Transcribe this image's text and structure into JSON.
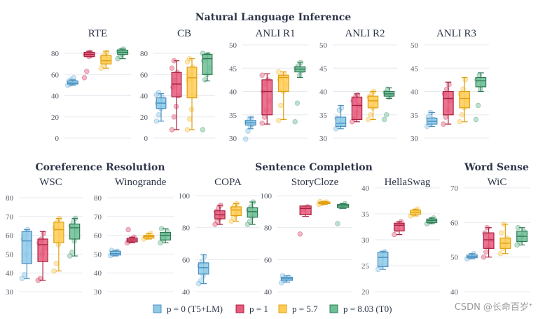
{
  "figure": {
    "group_titles": [
      "Natural Language Inference",
      "Coreference Resolution",
      "Sentence Completion",
      "Word Sense"
    ],
    "watermark": "CSDN @长命百岁ᐩ"
  },
  "legend": [
    {
      "label": "p = 0 (T5+LM)",
      "color": "#8ecae6",
      "edge": "#4a90c2"
    },
    {
      "label": "p = 1",
      "color": "#e75a7c",
      "edge": "#a8203f"
    },
    {
      "label": "p = 5.7",
      "color": "#ffcc55",
      "edge": "#e0a010"
    },
    {
      "label": "p = 8.03 (T0)",
      "color": "#6fbf96",
      "edge": "#2f7a55"
    }
  ],
  "chart_data": [
    {
      "type": "box",
      "title": "RTE",
      "group": "Natural Language Inference",
      "ylim": [
        0,
        88
      ],
      "yticks": [
        0,
        20,
        40,
        60,
        80
      ],
      "series": [
        {
          "name": "p = 0 (T5+LM)",
          "q1": 51,
          "median": 52,
          "q3": 54,
          "whislo": 50,
          "whishi": 55,
          "points": [
            50,
            51,
            52,
            53,
            54,
            55,
            57
          ]
        },
        {
          "name": "p = 1",
          "q1": 77,
          "median": 79,
          "q3": 81,
          "whislo": 77,
          "whishi": 82,
          "points": [
            57,
            63,
            77,
            78,
            79,
            80,
            81
          ]
        },
        {
          "name": "p = 5.7",
          "q1": 70,
          "median": 73,
          "q3": 78,
          "whislo": 66,
          "whishi": 82,
          "points": [
            66,
            69,
            72,
            74,
            76,
            79,
            81
          ]
        },
        {
          "name": "p = 8.03 (T0)",
          "q1": 79,
          "median": 81,
          "q3": 83,
          "whislo": 75,
          "whishi": 84,
          "points": [
            75,
            77,
            79,
            81,
            82,
            83,
            84
          ]
        }
      ]
    },
    {
      "type": "box",
      "title": "CB",
      "group": "Natural Language Inference",
      "ylim": [
        0,
        88
      ],
      "yticks": [
        0,
        20,
        40,
        60,
        80
      ],
      "series": [
        {
          "name": "p = 0 (T5+LM)",
          "q1": 28,
          "median": 33,
          "q3": 38,
          "whislo": 16,
          "whishi": 42,
          "points": [
            16,
            22,
            28,
            31,
            33,
            36,
            39,
            41,
            43
          ]
        },
        {
          "name": "p = 1",
          "q1": 39,
          "median": 51,
          "q3": 62,
          "whislo": 8,
          "whishi": 73,
          "points": [
            8,
            20,
            30,
            40,
            48,
            55,
            62,
            66,
            73
          ]
        },
        {
          "name": "p = 5.7",
          "q1": 38,
          "median": 57,
          "q3": 67,
          "whislo": 8,
          "whishi": 75,
          "points": [
            8,
            18,
            27,
            40,
            55,
            60,
            67,
            72,
            75
          ]
        },
        {
          "name": "p = 8.03 (T0)",
          "q1": 60,
          "median": 75,
          "q3": 79,
          "whislo": 54,
          "whishi": 80,
          "points": [
            8,
            55,
            60,
            66,
            73,
            77,
            79,
            80
          ]
        }
      ]
    },
    {
      "type": "box",
      "title": "ANLI R1",
      "group": "Natural Language Inference",
      "ylim": [
        30,
        50
      ],
      "yticks": [
        30,
        35,
        40,
        45,
        50
      ],
      "series": [
        {
          "name": "p = 0 (T5+LM)",
          "q1": 32.8,
          "median": 33.3,
          "q3": 33.8,
          "whislo": 32,
          "whishi": 34.5,
          "points": [
            29.8,
            31.5,
            32.5,
            33,
            33.4,
            33.8,
            34.3
          ]
        },
        {
          "name": "p = 1",
          "q1": 35,
          "median": 40,
          "q3": 42.5,
          "whislo": 33,
          "whishi": 43.8,
          "points": [
            33.2,
            34.5,
            36,
            38,
            40,
            41.5,
            42.5,
            43.5
          ]
        },
        {
          "name": "p = 5.7",
          "q1": 40,
          "median": 43,
          "q3": 43.5,
          "whislo": 34,
          "whishi": 44.2,
          "points": [
            33.8,
            37,
            40,
            41.5,
            42.5,
            43.2,
            43.8,
            44.2
          ]
        },
        {
          "name": "p = 8.03 (T0)",
          "q1": 44.2,
          "median": 44.8,
          "q3": 45.3,
          "whislo": 43,
          "whishi": 46.3,
          "points": [
            33.5,
            37.5,
            43.5,
            44.5,
            45,
            45.5,
            46.2
          ]
        }
      ]
    },
    {
      "type": "box",
      "title": "ANLI R2",
      "group": "Natural Language Inference",
      "ylim": [
        30,
        50
      ],
      "yticks": [
        30,
        35,
        40,
        45,
        50
      ],
      "series": [
        {
          "name": "p = 0 (T5+LM)",
          "q1": 32.5,
          "median": 33.2,
          "q3": 34.5,
          "whislo": 32,
          "whishi": 37,
          "points": [
            32,
            32.5,
            33,
            33.5,
            34.3,
            36,
            36.5
          ]
        },
        {
          "name": "p = 1",
          "q1": 34,
          "median": 37,
          "q3": 38.8,
          "whislo": 33.5,
          "whishi": 39.5,
          "points": [
            33.5,
            34.2,
            35.5,
            37,
            38,
            38.8,
            39.3
          ]
        },
        {
          "name": "p = 5.7",
          "q1": 36.5,
          "median": 38,
          "q3": 39,
          "whislo": 34,
          "whishi": 40,
          "points": [
            34,
            35,
            36.5,
            38,
            38.8,
            39.5,
            40
          ]
        },
        {
          "name": "p = 8.03 (T0)",
          "q1": 39,
          "median": 39.5,
          "q3": 40,
          "whislo": 38.5,
          "whishi": 40.8,
          "points": [
            34,
            35,
            38.8,
            39.3,
            39.8,
            40.5
          ]
        }
      ]
    },
    {
      "type": "box",
      "title": "ANLI R3",
      "group": "Natural Language Inference",
      "ylim": [
        30,
        50
      ],
      "yticks": [
        30,
        35,
        40,
        45,
        50
      ],
      "series": [
        {
          "name": "p = 0 (T5+LM)",
          "q1": 33,
          "median": 33.6,
          "q3": 34.3,
          "whislo": 32.5,
          "whishi": 35.5,
          "points": [
            32.5,
            33,
            33.5,
            34,
            34.5,
            35.5
          ]
        },
        {
          "name": "p = 1",
          "q1": 35,
          "median": 38.5,
          "q3": 40,
          "whislo": 33,
          "whishi": 42,
          "points": [
            33,
            34.5,
            36,
            38,
            39.5,
            40.5,
            41.5
          ]
        },
        {
          "name": "p = 5.7",
          "q1": 36.5,
          "median": 38.5,
          "q3": 40,
          "whislo": 33.5,
          "whishi": 43,
          "points": [
            33.5,
            35,
            36.5,
            38,
            39.5,
            40.5,
            42.5
          ]
        },
        {
          "name": "p = 8.03 (T0)",
          "q1": 41,
          "median": 42.3,
          "q3": 43,
          "whislo": 40,
          "whishi": 44,
          "points": [
            34,
            37,
            40.5,
            41.5,
            42.5,
            43.5
          ]
        }
      ]
    },
    {
      "type": "box",
      "title": "WSC",
      "group": "Coreference Resolution",
      "ylim": [
        30,
        80
      ],
      "yticks": [
        30,
        40,
        50,
        60,
        70,
        80
      ],
      "series": [
        {
          "name": "p = 0 (T5+LM)",
          "q1": 45,
          "median": 57,
          "q3": 62,
          "whislo": 37,
          "whishi": 63,
          "points": [
            37,
            39,
            50,
            55,
            58,
            61,
            63
          ]
        },
        {
          "name": "p = 1",
          "q1": 46,
          "median": 55,
          "q3": 58,
          "whislo": 36,
          "whishi": 62,
          "points": [
            36,
            37,
            50,
            53,
            56,
            58,
            61
          ]
        },
        {
          "name": "p = 5.7",
          "q1": 56,
          "median": 63,
          "q3": 67,
          "whislo": 41,
          "whishi": 69,
          "points": [
            41,
            45,
            55,
            60,
            64,
            67,
            69
          ]
        },
        {
          "name": "p = 8.03 (T0)",
          "q1": 58,
          "median": 64,
          "q3": 66,
          "whislo": 49,
          "whishi": 69,
          "points": [
            49,
            51,
            57,
            62,
            65,
            67,
            69
          ]
        }
      ]
    },
    {
      "type": "box",
      "title": "Winogrande",
      "group": "Coreference Resolution",
      "ylim": [
        30,
        80
      ],
      "yticks": [
        30,
        40,
        50,
        60,
        70,
        80
      ],
      "series": [
        {
          "name": "p = 0 (T5+LM)",
          "q1": 49.5,
          "median": 50.3,
          "q3": 51.5,
          "whislo": 49,
          "whishi": 52,
          "points": [
            49.2,
            50,
            50.8,
            51.5,
            52
          ]
        },
        {
          "name": "p = 1",
          "q1": 56.5,
          "median": 57.5,
          "q3": 58.5,
          "whislo": 56,
          "whishi": 59,
          "points": [
            56,
            57,
            58,
            59,
            63
          ]
        },
        {
          "name": "p = 5.7",
          "q1": 58.5,
          "median": 59.3,
          "q3": 60,
          "whislo": 58,
          "whishi": 61,
          "points": [
            58,
            59,
            60,
            61
          ]
        },
        {
          "name": "p = 8.03 (T0)",
          "q1": 57.5,
          "median": 60,
          "q3": 61.5,
          "whislo": 56,
          "whishi": 63.5,
          "points": [
            56,
            58,
            60,
            62,
            63.5
          ]
        }
      ]
    },
    {
      "type": "box",
      "title": "COPA",
      "group": "Sentence Completion",
      "ylim": [
        40,
        100
      ],
      "yticks": [
        40,
        60,
        80,
        100
      ],
      "series": [
        {
          "name": "p = 0 (T5+LM)",
          "q1": 51,
          "median": 55,
          "q3": 58,
          "whislo": 45,
          "whishi": 63,
          "points": [
            45,
            47,
            50,
            53,
            56,
            59,
            62
          ]
        },
        {
          "name": "p = 1",
          "q1": 85.5,
          "median": 88,
          "q3": 90.5,
          "whislo": 82,
          "whishi": 94,
          "points": [
            82,
            84,
            86,
            88,
            90,
            92,
            94
          ]
        },
        {
          "name": "p = 5.7",
          "q1": 87.5,
          "median": 91,
          "q3": 93,
          "whislo": 84,
          "whishi": 95,
          "points": [
            84,
            86,
            88,
            90,
            92,
            94,
            95
          ]
        },
        {
          "name": "p = 8.03 (T0)",
          "q1": 86.5,
          "median": 90,
          "q3": 92.5,
          "whislo": 82,
          "whishi": 96,
          "points": [
            82,
            84,
            87,
            89,
            91,
            93,
            96
          ]
        }
      ]
    },
    {
      "type": "box",
      "title": "StoryCloze",
      "group": "Sentence Completion",
      "ylim": [
        40,
        100
      ],
      "yticks": [
        40,
        60,
        80,
        100
      ],
      "series": [
        {
          "name": "p = 0 (T5+LM)",
          "q1": 47,
          "median": 48,
          "q3": 49,
          "whislo": 46,
          "whishi": 50,
          "points": [
            45.5,
            47,
            48,
            49,
            50
          ]
        },
        {
          "name": "p = 1",
          "q1": 88,
          "median": 92,
          "q3": 93.5,
          "whislo": 87,
          "whishi": 93.5,
          "points": [
            76,
            91,
            92,
            93
          ]
        },
        {
          "name": "p = 5.7",
          "q1": 95,
          "median": 95.5,
          "q3": 96,
          "whislo": 94.5,
          "whishi": 96.3,
          "points": [
            94.5,
            95,
            95.5,
            96,
            96.3
          ]
        },
        {
          "name": "p = 8.03 (T0)",
          "q1": 92.5,
          "median": 93.5,
          "q3": 94.5,
          "whislo": 92,
          "whishi": 95,
          "points": [
            82.5,
            93,
            94,
            95
          ]
        }
      ]
    },
    {
      "type": "box",
      "title": "HellaSwag",
      "group": "Sentence Completion",
      "ylim": [
        20,
        40
      ],
      "yticks": [
        20,
        25,
        30,
        35,
        40
      ],
      "series": [
        {
          "name": "p = 0 (T5+LM)",
          "q1": 24.8,
          "median": 26.6,
          "q3": 27.6,
          "whislo": 24.3,
          "whishi": 27.8,
          "points": [
            24.3,
            25,
            27.2,
            27.7
          ]
        },
        {
          "name": "p = 1",
          "q1": 31.7,
          "median": 32.8,
          "q3": 33.2,
          "whislo": 31,
          "whishi": 33.5,
          "points": [
            31,
            32,
            33,
            33.5
          ]
        },
        {
          "name": "p = 5.7",
          "q1": 34.9,
          "median": 35.3,
          "q3": 35.7,
          "whislo": 34.6,
          "whishi": 35.9,
          "points": [
            34.6,
            35,
            35.5,
            35.9
          ]
        },
        {
          "name": "p = 8.03 (T0)",
          "q1": 33.3,
          "median": 33.7,
          "q3": 34,
          "whislo": 33.1,
          "whishi": 34.2,
          "points": [
            33.1,
            33.5,
            33.9,
            34.2
          ]
        }
      ]
    },
    {
      "type": "box",
      "title": "WiC",
      "group": "Word Sense",
      "ylim": [
        40,
        70
      ],
      "yticks": [
        40,
        50,
        60,
        70
      ],
      "series": [
        {
          "name": "p = 0 (T5+LM)",
          "q1": 49.8,
          "median": 50.2,
          "q3": 50.6,
          "whislo": 49.5,
          "whishi": 51,
          "points": [
            49.5,
            50,
            50.5,
            51
          ]
        },
        {
          "name": "p = 1",
          "q1": 52.5,
          "median": 55,
          "q3": 57,
          "whislo": 50,
          "whishi": 58.5,
          "points": [
            50,
            51.5,
            53,
            55,
            57,
            58.5
          ]
        },
        {
          "name": "p = 5.7",
          "q1": 52.5,
          "median": 54,
          "q3": 55.5,
          "whislo": 51,
          "whishi": 59.5,
          "points": [
            51,
            52.5,
            54,
            55.5,
            57,
            59.5
          ]
        },
        {
          "name": "p = 8.03 (T0)",
          "q1": 54.5,
          "median": 56,
          "q3": 57.5,
          "whislo": 53.5,
          "whishi": 58.5,
          "points": [
            53.5,
            54.5,
            56,
            57.5,
            58.5
          ]
        }
      ]
    }
  ]
}
